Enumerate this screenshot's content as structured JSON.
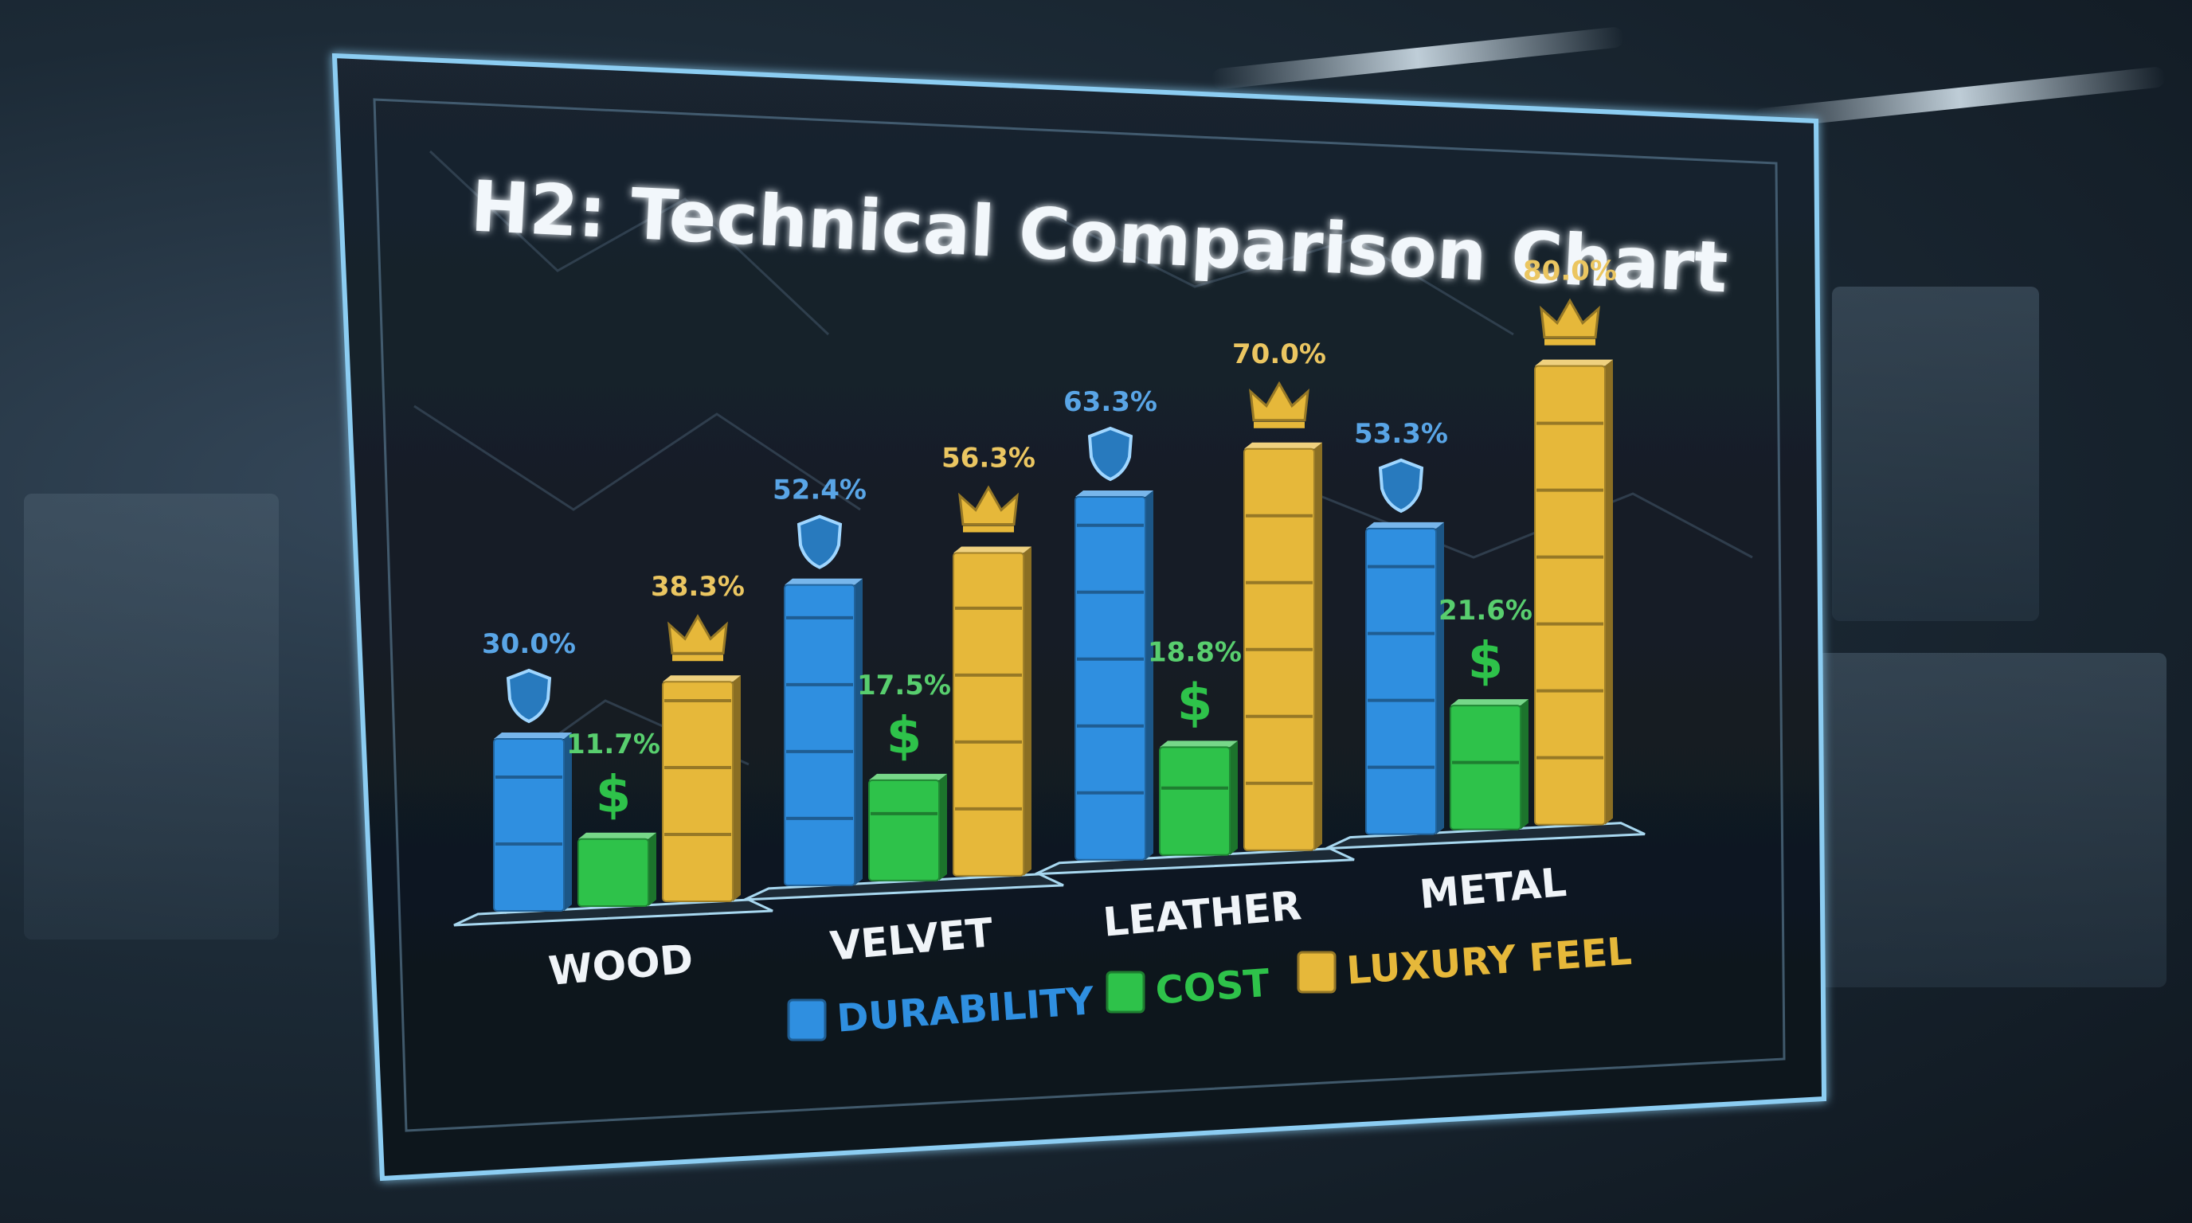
{
  "chart_data": {
    "type": "bar",
    "title": "H2: Technical Comparison Chart",
    "categories": [
      "WOOD",
      "VELVET",
      "LEATHER",
      "METAL"
    ],
    "series": [
      {
        "name": "DURABILITY",
        "values": [
          30.0,
          52.4,
          63.3,
          53.3
        ],
        "labels": [
          "30.0%",
          "52.4%",
          "63.3%",
          "53.3%"
        ],
        "color": "#2f8fe0",
        "icon": "shield-icon"
      },
      {
        "name": "COST",
        "values": [
          11.7,
          17.5,
          18.8,
          21.6
        ],
        "labels": [
          "11.7%",
          "17.5%",
          "18.8%",
          "21.6%"
        ],
        "color": "#2ec24a",
        "icon": "dollar-icon"
      },
      {
        "name": "LUXURY FEEL",
        "values": [
          38.3,
          56.3,
          70.0,
          80.0
        ],
        "labels": [
          "38.3%",
          "56.3%",
          "70.0%",
          "80.0%"
        ],
        "color": "#e6b83a",
        "icon": "crown-icon"
      }
    ],
    "legend_position": "bottom-center",
    "grid": false
  },
  "colors": {
    "durability": "#2f8fe0",
    "cost": "#2ec24a",
    "luxury": "#e6b83a",
    "panel_border": "#7fc6f0",
    "title_text": "#f2f7fb"
  }
}
